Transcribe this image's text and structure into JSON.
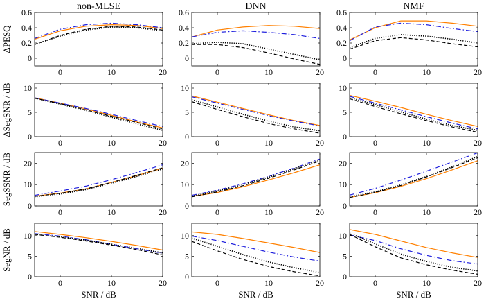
{
  "chart_data": {
    "type": "line",
    "figure": "ΔPESQ, ΔSegSNR, SegSSNR and SegNR versus SNR for non-MLSE, DNN and NMF estimators",
    "columns": [
      "non-MLSE",
      "DNN",
      "NMF"
    ],
    "rows": [
      {
        "ylabel": "ΔPESQ",
        "ylim": [
          -0.1,
          0.6
        ],
        "yticks": [
          0,
          0.2,
          0.4,
          0.6
        ]
      },
      {
        "ylabel": "ΔSegSNR / dB",
        "ylim": [
          0,
          11
        ],
        "yticks": [
          0,
          5,
          10
        ]
      },
      {
        "ylabel": "SegSSNR / dB",
        "ylim": [
          0,
          25
        ],
        "yticks": [
          0,
          10,
          20
        ]
      },
      {
        "ylabel": "SegNR / dB",
        "ylim": [
          0,
          13
        ],
        "yticks": [
          0,
          5,
          10
        ]
      }
    ],
    "xlabel": "SNR / dB",
    "xlim": [
      -5,
      20
    ],
    "xticks": [
      0,
      10,
      20
    ],
    "x": [
      -5,
      0,
      5,
      10,
      15,
      20
    ],
    "series_styles": [
      {
        "name": "orange-solid",
        "color": "#ff8000",
        "dash": ""
      },
      {
        "name": "blue-dashdot",
        "color": "#1f1fdd",
        "dash": "7 3 1.5 3"
      },
      {
        "name": "black-dotted",
        "color": "#000000",
        "dash": "1.2 2"
      },
      {
        "name": "black-dashed",
        "color": "#000000",
        "dash": "5 3"
      }
    ],
    "panels": [
      {
        "row": 0,
        "col": 0,
        "series": [
          {
            "style": "orange-solid",
            "values": [
              0.25,
              0.36,
              0.42,
              0.44,
              0.43,
              0.39
            ]
          },
          {
            "style": "blue-dashdot",
            "values": [
              0.26,
              0.38,
              0.44,
              0.46,
              0.44,
              0.4
            ]
          },
          {
            "style": "black-dotted",
            "values": [
              0.18,
              0.29,
              0.37,
              0.41,
              0.4,
              0.36
            ]
          },
          {
            "style": "black-dashed",
            "values": [
              0.18,
              0.3,
              0.38,
              0.42,
              0.41,
              0.37
            ]
          }
        ]
      },
      {
        "row": 0,
        "col": 1,
        "series": [
          {
            "style": "orange-solid",
            "values": [
              0.28,
              0.37,
              0.41,
              0.43,
              0.42,
              0.39
            ]
          },
          {
            "style": "blue-dashdot",
            "values": [
              0.28,
              0.34,
              0.36,
              0.34,
              0.31,
              0.26
            ]
          },
          {
            "style": "black-dotted",
            "values": [
              0.19,
              0.21,
              0.19,
              0.12,
              0.05,
              -0.02
            ]
          },
          {
            "style": "black-dashed",
            "values": [
              0.18,
              0.18,
              0.14,
              0.07,
              -0.01,
              -0.08
            ]
          }
        ]
      },
      {
        "row": 0,
        "col": 2,
        "series": [
          {
            "style": "orange-solid",
            "values": [
              0.24,
              0.4,
              0.49,
              0.49,
              0.46,
              0.42
            ]
          },
          {
            "style": "blue-dashdot",
            "values": [
              0.23,
              0.41,
              0.46,
              0.44,
              0.39,
              0.35
            ]
          },
          {
            "style": "black-dotted",
            "values": [
              0.14,
              0.26,
              0.31,
              0.29,
              0.25,
              0.2
            ]
          },
          {
            "style": "black-dashed",
            "values": [
              0.12,
              0.23,
              0.27,
              0.24,
              0.19,
              0.15
            ]
          }
        ]
      },
      {
        "row": 1,
        "col": 0,
        "series": [
          {
            "style": "orange-solid",
            "values": [
              8.0,
              6.9,
              5.7,
              4.4,
              3.0,
              1.8
            ]
          },
          {
            "style": "blue-dashdot",
            "values": [
              8.0,
              6.9,
              5.8,
              4.6,
              3.3,
              2.1
            ]
          },
          {
            "style": "black-dotted",
            "values": [
              7.9,
              6.7,
              5.4,
              4.0,
              2.6,
              1.3
            ]
          },
          {
            "style": "black-dashed",
            "values": [
              7.9,
              6.8,
              5.5,
              4.2,
              2.9,
              1.6
            ]
          }
        ]
      },
      {
        "row": 1,
        "col": 1,
        "series": [
          {
            "style": "orange-solid",
            "values": [
              8.4,
              7.1,
              5.8,
              4.5,
              3.3,
              2.3
            ]
          },
          {
            "style": "blue-dashdot",
            "values": [
              8.2,
              6.9,
              5.6,
              4.3,
              3.2,
              2.2
            ]
          },
          {
            "style": "black-dotted",
            "values": [
              7.6,
              6.1,
              4.6,
              3.2,
              2.0,
              1.2
            ]
          },
          {
            "style": "black-dashed",
            "values": [
              7.2,
              5.6,
              4.1,
              2.7,
              1.6,
              0.7
            ]
          }
        ]
      },
      {
        "row": 1,
        "col": 2,
        "series": [
          {
            "style": "orange-solid",
            "values": [
              8.5,
              7.3,
              6.0,
              4.6,
              3.3,
              2.1
            ]
          },
          {
            "style": "blue-dashdot",
            "values": [
              8.3,
              6.9,
              5.5,
              4.1,
              2.8,
              1.6
            ]
          },
          {
            "style": "black-dotted",
            "values": [
              8.0,
              6.6,
              5.1,
              3.6,
              2.3,
              1.3
            ]
          },
          {
            "style": "black-dashed",
            "values": [
              7.8,
              6.2,
              4.7,
              3.3,
              2.0,
              0.9
            ]
          }
        ]
      },
      {
        "row": 2,
        "col": 0,
        "series": [
          {
            "style": "orange-solid",
            "values": [
              4.6,
              6.0,
              8.0,
              11.0,
              14.3,
              17.7
            ]
          },
          {
            "style": "blue-dashdot",
            "values": [
              5.0,
              7.0,
              9.3,
              12.3,
              15.7,
              19.3
            ]
          },
          {
            "style": "black-dotted",
            "values": [
              4.3,
              5.6,
              7.7,
              10.6,
              13.9,
              17.3
            ]
          },
          {
            "style": "black-dashed",
            "values": [
              4.5,
              5.9,
              8.0,
              11.0,
              14.4,
              17.9
            ]
          }
        ]
      },
      {
        "row": 2,
        "col": 1,
        "series": [
          {
            "style": "orange-solid",
            "values": [
              4.5,
              6.3,
              9.0,
              12.2,
              15.6,
              19.3
            ]
          },
          {
            "style": "blue-dashdot",
            "values": [
              5.0,
              7.4,
              10.4,
              13.9,
              17.8,
              22.0
            ]
          },
          {
            "style": "black-dotted",
            "values": [
              4.6,
              7.0,
              10.0,
              13.5,
              17.4,
              21.6
            ]
          },
          {
            "style": "black-dashed",
            "values": [
              4.3,
              6.6,
              9.5,
              13.0,
              16.9,
              21.1
            ]
          }
        ]
      },
      {
        "row": 2,
        "col": 2,
        "series": [
          {
            "style": "orange-solid",
            "values": [
              4.0,
              6.2,
              9.2,
              12.8,
              16.9,
              21.2
            ]
          },
          {
            "style": "blue-dashdot",
            "values": [
              5.1,
              8.2,
              12.1,
              16.3,
              20.6,
              24.9
            ]
          },
          {
            "style": "black-dotted",
            "values": [
              4.4,
              6.6,
              9.9,
              13.8,
              18.3,
              23.2
            ]
          },
          {
            "style": "black-dashed",
            "values": [
              4.0,
              6.3,
              9.6,
              13.6,
              18.0,
              22.6
            ]
          }
        ]
      },
      {
        "row": 3,
        "col": 0,
        "series": [
          {
            "style": "orange-solid",
            "values": [
              11.0,
              10.3,
              9.5,
              8.6,
              7.6,
              6.5
            ]
          },
          {
            "style": "blue-dashdot",
            "values": [
              10.5,
              9.9,
              9.0,
              7.9,
              6.8,
              5.7
            ]
          },
          {
            "style": "black-dotted",
            "values": [
              10.3,
              9.7,
              8.9,
              7.9,
              6.9,
              5.8
            ]
          },
          {
            "style": "black-dashed",
            "values": [
              10.3,
              9.6,
              8.7,
              7.7,
              6.6,
              5.3
            ]
          }
        ]
      },
      {
        "row": 3,
        "col": 1,
        "series": [
          {
            "style": "orange-solid",
            "values": [
              10.9,
              10.3,
              9.3,
              8.2,
              7.1,
              5.9
            ]
          },
          {
            "style": "blue-dashdot",
            "values": [
              9.9,
              8.8,
              7.4,
              6.0,
              4.8,
              3.8
            ]
          },
          {
            "style": "black-dotted",
            "values": [
              9.4,
              7.4,
              5.4,
              3.6,
              2.2,
              1.0
            ]
          },
          {
            "style": "black-dashed",
            "values": [
              8.6,
              6.3,
              4.2,
              2.5,
              1.2,
              0.2
            ]
          }
        ]
      },
      {
        "row": 3,
        "col": 2,
        "series": [
          {
            "style": "orange-solid",
            "values": [
              11.5,
              10.3,
              8.7,
              7.1,
              5.8,
              4.7
            ]
          },
          {
            "style": "blue-dashdot",
            "values": [
              10.2,
              8.8,
              6.8,
              5.2,
              3.9,
              3.1
            ]
          },
          {
            "style": "black-dotted",
            "values": [
              10.6,
              8.0,
              5.5,
              3.7,
              2.3,
              1.4
            ]
          },
          {
            "style": "black-dashed",
            "values": [
              10.3,
              7.3,
              4.6,
              2.9,
              1.6,
              0.6
            ]
          }
        ]
      }
    ]
  }
}
